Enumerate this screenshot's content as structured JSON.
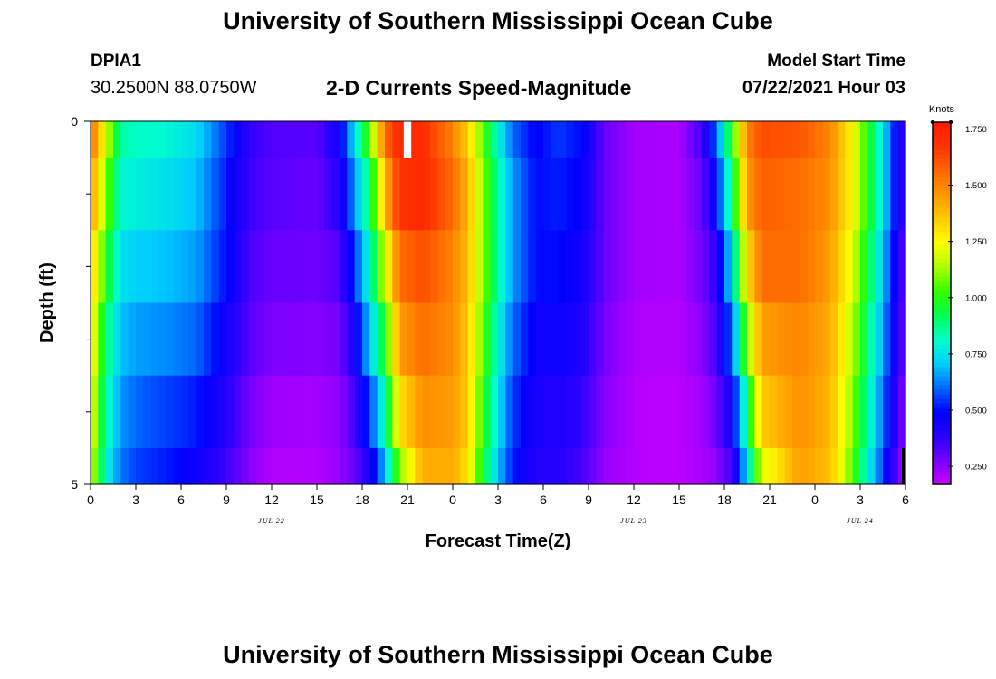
{
  "page": {
    "title_top": "University of Southern Mississippi Ocean Cube",
    "title_bottom": "University of Southern Mississippi Ocean Cube",
    "station": "DPIA1",
    "coordinates": "30.2500N  88.0750W",
    "subtitle": "2-D Currents Speed-Magnitude",
    "model_start_label": "Model Start Time",
    "model_start_value": "07/22/2021 Hour 03"
  },
  "chart_data": {
    "type": "heatmap",
    "title": "2-D Currents Speed-Magnitude",
    "xlabel": "Forecast Time(Z)",
    "ylabel": "Depth (ft)",
    "x_range_hours": [
      0,
      54
    ],
    "y_range": [
      0,
      5
    ],
    "y_tick_labels": [
      "0",
      "5"
    ],
    "y_minor_ticks": [
      1,
      2,
      3,
      4
    ],
    "x_tick_hours": [
      0,
      3,
      6,
      9,
      12,
      15,
      18,
      21,
      24,
      27,
      30,
      33,
      36,
      39,
      42,
      45,
      48,
      51,
      54
    ],
    "x_tick_labels": [
      "0",
      "3",
      "6",
      "9",
      "12",
      "15",
      "18",
      "21",
      "0",
      "3",
      "6",
      "9",
      "12",
      "15",
      "18",
      "21",
      "0",
      "3",
      "6"
    ],
    "date_labels": [
      {
        "text": "JUL 22",
        "hour": 12
      },
      {
        "text": "JUL 23",
        "hour": 36
      },
      {
        "text": "JUL 24",
        "hour": 51
      }
    ],
    "depth_bands": [
      {
        "top": 0,
        "bottom": 0.5
      },
      {
        "top": 0.5,
        "bottom": 1.5
      },
      {
        "top": 1.5,
        "bottom": 2.5
      },
      {
        "top": 2.5,
        "bottom": 3.5
      },
      {
        "top": 3.5,
        "bottom": 4.5
      },
      {
        "top": 4.5,
        "bottom": 5
      }
    ],
    "time_keyframes": [
      {
        "h": 0,
        "v": [
          1.55,
          1.45,
          1.35,
          1.3,
          1.25,
          1.2
        ]
      },
      {
        "h": 0.5,
        "v": [
          1.4,
          1.3,
          1.2,
          1.1,
          1.05,
          1.0
        ]
      },
      {
        "h": 1,
        "v": [
          1.2,
          1.1,
          1.0,
          0.9,
          0.85,
          0.8
        ]
      },
      {
        "h": 2,
        "v": [
          0.85,
          0.8,
          0.75,
          0.7,
          0.65,
          0.62
        ]
      },
      {
        "h": 3,
        "v": [
          0.82,
          0.78,
          0.72,
          0.66,
          0.6,
          0.56
        ]
      },
      {
        "h": 5,
        "v": [
          0.8,
          0.75,
          0.7,
          0.64,
          0.56,
          0.52
        ]
      },
      {
        "h": 7,
        "v": [
          0.74,
          0.7,
          0.66,
          0.6,
          0.52,
          0.46
        ]
      },
      {
        "h": 9,
        "v": [
          0.55,
          0.52,
          0.5,
          0.45,
          0.4,
          0.36
        ]
      },
      {
        "h": 10.5,
        "v": [
          0.38,
          0.36,
          0.34,
          0.32,
          0.28,
          0.26
        ]
      },
      {
        "h": 12,
        "v": [
          0.33,
          0.32,
          0.3,
          0.27,
          0.23,
          0.2
        ]
      },
      {
        "h": 15,
        "v": [
          0.32,
          0.3,
          0.29,
          0.26,
          0.22,
          0.2
        ]
      },
      {
        "h": 16.5,
        "v": [
          0.45,
          0.4,
          0.33,
          0.28,
          0.25,
          0.24
        ]
      },
      {
        "h": 17.5,
        "v": [
          0.75,
          0.65,
          0.55,
          0.45,
          0.35,
          0.3
        ]
      },
      {
        "h": 18.5,
        "v": [
          1.05,
          0.9,
          0.8,
          0.7,
          0.55,
          0.42
        ]
      },
      {
        "h": 19.5,
        "v": [
          1.55,
          1.4,
          1.2,
          1.0,
          0.85,
          0.7
        ]
      },
      {
        "h": 20.5,
        "v": [
          1.72,
          1.68,
          1.55,
          1.45,
          1.3,
          1.1
        ]
      },
      {
        "h": 22,
        "v": [
          1.7,
          1.72,
          1.62,
          1.55,
          1.48,
          1.42
        ]
      },
      {
        "h": 24,
        "v": [
          1.5,
          1.55,
          1.5,
          1.48,
          1.45,
          1.42
        ]
      },
      {
        "h": 25,
        "v": [
          1.35,
          1.4,
          1.38,
          1.36,
          1.35,
          1.3
        ]
      },
      {
        "h": 26,
        "v": [
          1.05,
          1.1,
          1.1,
          1.05,
          1.0,
          0.95
        ]
      },
      {
        "h": 27,
        "v": [
          0.8,
          0.85,
          0.85,
          0.8,
          0.75,
          0.7
        ]
      },
      {
        "h": 28,
        "v": [
          0.6,
          0.65,
          0.65,
          0.6,
          0.55,
          0.52
        ]
      },
      {
        "h": 29.5,
        "v": [
          0.48,
          0.5,
          0.5,
          0.46,
          0.42,
          0.4
        ]
      },
      {
        "h": 31,
        "v": [
          0.55,
          0.52,
          0.5,
          0.46,
          0.42,
          0.4
        ]
      },
      {
        "h": 32.5,
        "v": [
          0.5,
          0.48,
          0.45,
          0.42,
          0.38,
          0.35
        ]
      },
      {
        "h": 34,
        "v": [
          0.3,
          0.3,
          0.3,
          0.28,
          0.26,
          0.24
        ]
      },
      {
        "h": 36,
        "v": [
          0.22,
          0.22,
          0.22,
          0.21,
          0.2,
          0.2
        ]
      },
      {
        "h": 39,
        "v": [
          0.21,
          0.21,
          0.21,
          0.2,
          0.19,
          0.19
        ]
      },
      {
        "h": 40.5,
        "v": [
          0.35,
          0.3,
          0.28,
          0.25,
          0.22,
          0.21
        ]
      },
      {
        "h": 41.5,
        "v": [
          0.6,
          0.5,
          0.4,
          0.35,
          0.3,
          0.25
        ]
      },
      {
        "h": 42.5,
        "v": [
          1.0,
          0.9,
          0.75,
          0.6,
          0.45,
          0.35
        ]
      },
      {
        "h": 43.5,
        "v": [
          1.5,
          1.45,
          1.3,
          1.1,
          0.9,
          0.75
        ]
      },
      {
        "h": 44.5,
        "v": [
          1.62,
          1.58,
          1.55,
          1.45,
          1.35,
          1.2
        ]
      },
      {
        "h": 47,
        "v": [
          1.6,
          1.55,
          1.55,
          1.5,
          1.48,
          1.45
        ]
      },
      {
        "h": 49,
        "v": [
          1.5,
          1.48,
          1.45,
          1.42,
          1.4,
          1.38
        ]
      },
      {
        "h": 50.5,
        "v": [
          1.25,
          1.25,
          1.2,
          1.15,
          1.1,
          1.05
        ]
      },
      {
        "h": 51.5,
        "v": [
          1.0,
          1.0,
          0.95,
          0.9,
          0.85,
          0.8
        ]
      },
      {
        "h": 52.5,
        "v": [
          0.75,
          0.75,
          0.7,
          0.65,
          0.6,
          0.55
        ]
      },
      {
        "h": 53.5,
        "v": [
          0.45,
          0.45,
          0.42,
          0.4,
          0.35,
          0.3
        ]
      },
      {
        "h": 54,
        "v": [
          0.35,
          0.35,
          0.3,
          0.28,
          0.25,
          0.22
        ]
      }
    ],
    "missing_data": [
      {
        "h_start": 20.75,
        "h_end": 21.25,
        "band": 0
      }
    ],
    "colorbar": {
      "unit": "Knots",
      "min": 0.17,
      "max": 1.78,
      "tick_values": [
        0.25,
        0.5,
        0.75,
        1.0,
        1.25,
        1.5,
        1.75
      ],
      "tick_labels": [
        "0.250",
        "0.500",
        "0.750",
        "1.000",
        "1.250",
        "1.500",
        "1.750"
      ],
      "colors": [
        "#cc00ff",
        "#7700ff",
        "#2a00ff",
        "#0000ff",
        "#0066ff",
        "#00ccff",
        "#00ffcc",
        "#00ff55",
        "#33ff00",
        "#aaff00",
        "#ffff00",
        "#ffcc00",
        "#ff9900",
        "#ff6600",
        "#ff3300",
        "#ff1a00"
      ]
    },
    "missing_color": "#ffffff",
    "edge_color": "#000000"
  }
}
